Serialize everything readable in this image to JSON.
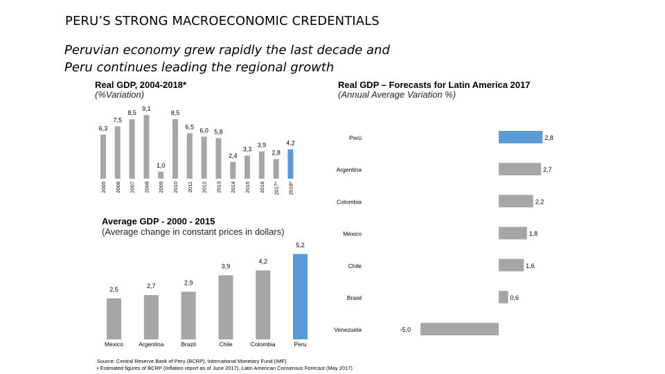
{
  "header": {
    "title": "PERU’S STRONG MACROECONOMIC CREDENTIALS",
    "subtitle_line1": "Peruvian economy grew rapidly the last decade and",
    "subtitle_line2": "Peru continues leading the regional growth"
  },
  "colors": {
    "gray": "#a6a6a6",
    "blue": "#5b9bd5"
  },
  "chart_data": [
    {
      "type": "bar",
      "title": "Real GDP, 2004-2018*",
      "note": "(%Variation)",
      "categories": [
        "2005",
        "2006",
        "2007",
        "2008",
        "2009",
        "2010",
        "2011",
        "2012",
        "2013",
        "2014",
        "2015",
        "2016",
        "2017*",
        "2018*"
      ],
      "values": [
        6.3,
        7.5,
        8.5,
        9.1,
        1.0,
        8.5,
        6.5,
        6.0,
        5.8,
        2.4,
        3.3,
        3.9,
        2.8,
        4.2
      ],
      "labels": [
        "6,3",
        "7,5",
        "8,5",
        "9,1",
        "1,0",
        "8,5",
        "6,5",
        "6,0",
        "5,8",
        "2,4",
        "3,3",
        "3,9",
        "2,8",
        "4,2"
      ],
      "ylim": [
        0,
        9.1
      ]
    },
    {
      "type": "bar",
      "orientation": "horizontal",
      "title": "Real GDP – Forecasts for Latin America 2017",
      "note": "(Annual Average Variation %)",
      "categories": [
        "Perú",
        "Argentina",
        "Colombia",
        "México",
        "Chile",
        "Brasil",
        "Venezuela"
      ],
      "values": [
        2.8,
        2.7,
        2.2,
        1.8,
        1.6,
        0.6,
        -5.0
      ],
      "labels": [
        "2,8",
        "2,7",
        "2,2",
        "1,8",
        "1,6",
        "0,6",
        "-5,0"
      ]
    },
    {
      "type": "bar",
      "title": "Average GDP - 2000 - 2015",
      "note": "(Average change in constant prices in dollars)",
      "categories": [
        "Mexico",
        "Argentina",
        "Brazil",
        "Chile",
        "Colombia",
        "Peru"
      ],
      "values": [
        2.5,
        2.7,
        2.9,
        3.9,
        4.2,
        5.2
      ],
      "labels": [
        "2,5",
        "2,7",
        "2,9",
        "3,9",
        "4,2",
        "5,2"
      ]
    }
  ],
  "source": {
    "line1": "Source: Central Reserve Bank of Peru (BCRP), International Monetary Fund (IMF)",
    "line2": "•     Estimated figures of BCRP (Inflation report as of June 2017), Latin American Consensus Forecast (May 2017)"
  }
}
